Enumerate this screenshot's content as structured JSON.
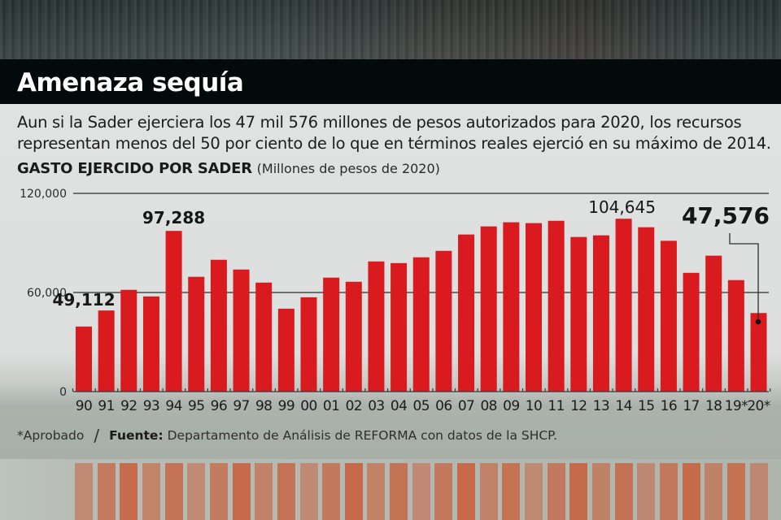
{
  "title": "Amenaza sequía",
  "intro": {
    "line1": "Aun si la Sader ejerciera los 47 mil 576 millones de pesos autorizados para 2020, los recursos",
    "line2": "representan menos del 50 por ciento de lo que en términos reales ejerció en su máximo de 2014."
  },
  "chart_heading": {
    "title": "GASTO EJERCIDO POR SADER",
    "subtitle": "(Millones de pesos de 2020)"
  },
  "footer": {
    "note": "*Aprobado",
    "separator": "/",
    "source_label": "Fuente:",
    "source_text": "Departamento de Análisis de REFORMA con datos de la SHCP."
  },
  "colors": {
    "bar": "#d91a1f",
    "header_band": "#020a0c",
    "panel": "#dfe2e1",
    "text": "#1c1c1c"
  },
  "chart_data": {
    "type": "bar",
    "title": "GASTO EJERCIDO POR SADER",
    "subtitle": "(Millones de pesos de 2020)",
    "xlabel": "",
    "ylabel": "Millones de pesos de 2020",
    "ylim": [
      0,
      120000
    ],
    "yticks": [
      0,
      60000,
      120000
    ],
    "ytick_labels": [
      "0",
      "60,000",
      "120,000"
    ],
    "grid": true,
    "legend": "none",
    "categories": [
      "90",
      "91",
      "92",
      "93",
      "94",
      "95",
      "96",
      "97",
      "98",
      "99",
      "00",
      "01",
      "02",
      "03",
      "04",
      "05",
      "06",
      "07",
      "08",
      "09",
      "10",
      "11",
      "12",
      "13",
      "14",
      "15",
      "16",
      "17",
      "18",
      "19*",
      "20*"
    ],
    "values": [
      39400,
      49112,
      61600,
      57600,
      97288,
      69500,
      79800,
      73900,
      66000,
      50200,
      57100,
      69000,
      66500,
      78800,
      77800,
      81300,
      85200,
      95100,
      100000,
      102500,
      102000,
      103400,
      93600,
      94600,
      104645,
      99500,
      91300,
      71900,
      82300,
      67500,
      47576
    ],
    "annotations": [
      {
        "category": "91",
        "label": "49,112",
        "style": "bold"
      },
      {
        "category": "94",
        "label": "97,288",
        "style": "bold"
      },
      {
        "category": "14",
        "label": "104,645",
        "style": "regular"
      },
      {
        "category": "20*",
        "label": "47,576",
        "style": "bold-large",
        "leader_line": true
      }
    ]
  }
}
